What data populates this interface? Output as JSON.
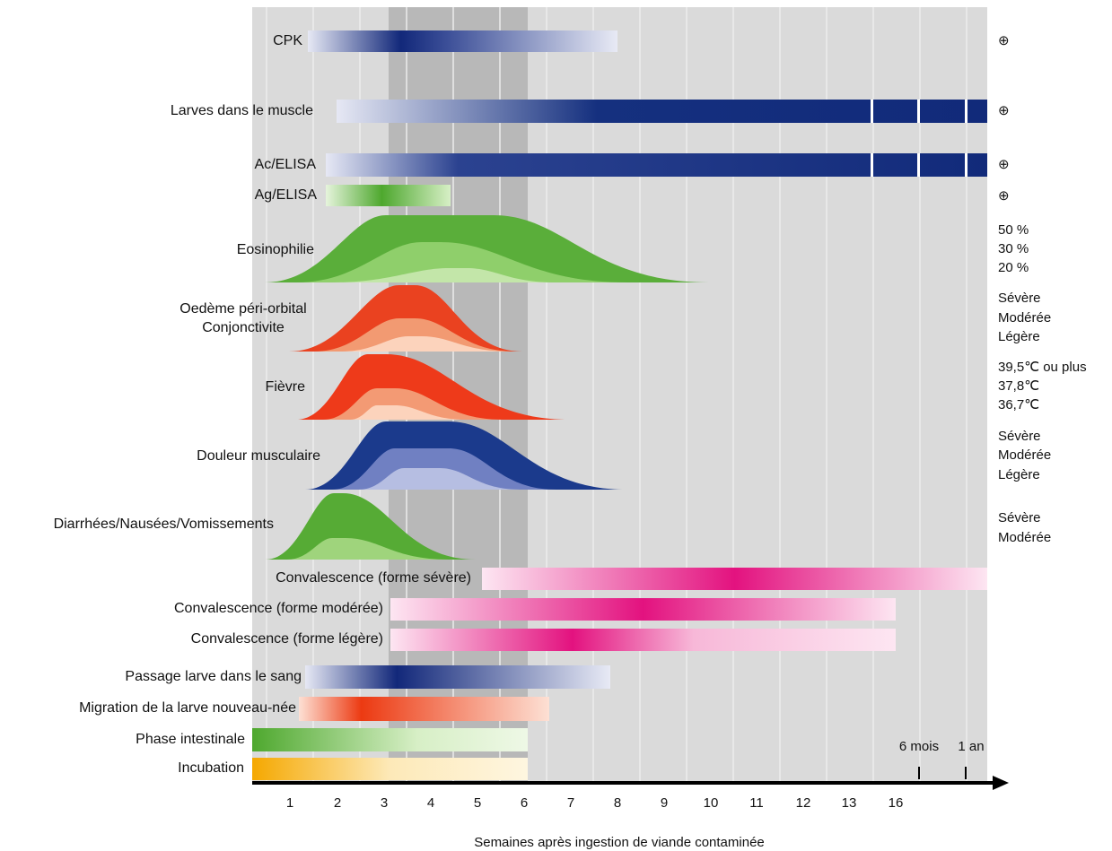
{
  "rows": [
    {
      "labels": [
        "CPK"
      ],
      "notes": [
        "⊕"
      ]
    },
    {
      "labels": [
        "Larves dans le muscle"
      ],
      "notes": [
        "⊕"
      ]
    },
    {
      "labels": [
        "Ac/ELISA"
      ],
      "notes": [
        "⊕"
      ]
    },
    {
      "labels": [
        "Ag/ELISA"
      ],
      "notes": [
        "⊕"
      ]
    },
    {
      "labels": [
        "Eosinophilie"
      ],
      "notes": [
        "50 %",
        "30 %",
        "20 %"
      ]
    },
    {
      "labels": [
        "Oedème péri-orbital",
        "Conjonctivite"
      ],
      "notes": [
        "Sévère",
        "Modérée",
        "Légère"
      ]
    },
    {
      "labels": [
        "Fièvre"
      ],
      "notes": [
        "39,5℃ ou plus",
        "37,8℃",
        "36,7℃"
      ]
    },
    {
      "labels": [
        "Douleur musculaire"
      ],
      "notes": [
        "Sévère",
        "Modérée",
        "Légère"
      ]
    },
    {
      "labels": [
        "Diarrhées/Nausées/Vomissements"
      ],
      "notes": [
        "Sévère",
        "Modérée"
      ]
    },
    {
      "labels": [
        "Convalescence (forme sévère)"
      ],
      "notes": []
    },
    {
      "labels": [
        "Convalescence (forme modérée)"
      ],
      "notes": []
    },
    {
      "labels": [
        "Convalescence (forme légère)"
      ],
      "notes": []
    },
    {
      "labels": [
        "Passage larve dans le sang"
      ],
      "notes": []
    },
    {
      "labels": [
        "Migration de la larve nouveau-née"
      ],
      "notes": []
    },
    {
      "labels": [
        "Phase intestinale"
      ],
      "notes": []
    },
    {
      "labels": [
        "Incubation"
      ],
      "notes": []
    }
  ],
  "axis": {
    "ticks": [
      1,
      2,
      3,
      4,
      5,
      6,
      7,
      8,
      9,
      10,
      11,
      12,
      13,
      16
    ],
    "extra_ticks": [
      "6 mois",
      "1 an"
    ],
    "title": "Semaines après ingestion de viande contaminée"
  }
}
